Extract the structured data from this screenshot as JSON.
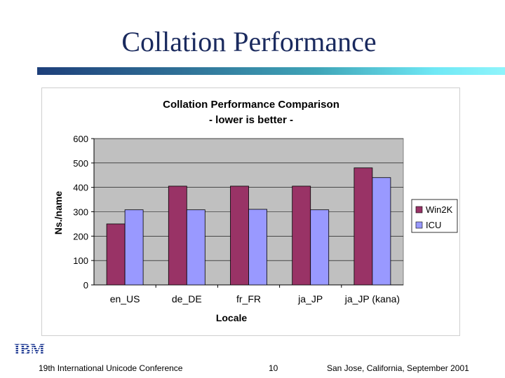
{
  "slide": {
    "title": "Collation Performance",
    "footer_left": "19th International Unicode Conference",
    "page_number": "10",
    "footer_right": "San Jose, California, September 2001",
    "logo_text": "IBM"
  },
  "colors": {
    "title": "#1a2a5e",
    "win2k": "#993366",
    "icu": "#9999ff",
    "plot_bg": "#c0c0c0",
    "logo": "#1f3a93"
  },
  "chart_data": {
    "type": "bar",
    "title": "Collation Performance Comparison",
    "subtitle": "- lower is better -",
    "xlabel": "Locale",
    "ylabel": "Ns./name",
    "categories": [
      "en_US",
      "de_DE",
      "fr_FR",
      "ja_JP",
      "ja_JP (kana)"
    ],
    "series": [
      {
        "name": "Win2K",
        "values": [
          250,
          405,
          405,
          405,
          480
        ]
      },
      {
        "name": "ICU",
        "values": [
          308,
          308,
          310,
          308,
          440
        ]
      }
    ],
    "ylim": [
      0,
      600
    ],
    "yticks": [
      0,
      100,
      200,
      300,
      400,
      500,
      600
    ],
    "grid": true,
    "legend": "right"
  }
}
